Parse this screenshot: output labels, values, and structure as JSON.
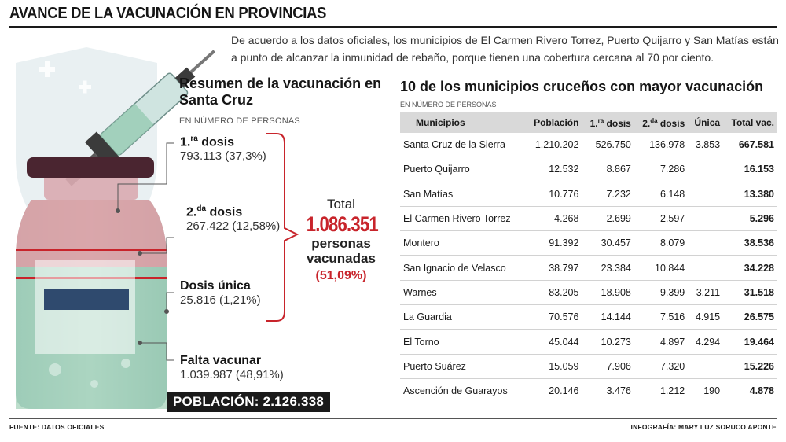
{
  "header": {
    "title": "AVANCE DE LA VACUNACIÓN EN PROVINCIAS",
    "intro": "De acuerdo a los datos oficiales, los municipios de El Carmen Rivero Torrez, Puerto Quijarro y San Matías están a punto de alcanzar la inmunidad de rebaño, porque tienen una cobertura cercana al 70 por ciento."
  },
  "summary": {
    "title": "Resumen de la vacunación en Santa Cruz",
    "subtitle": "EN NÚMERO DE PERSONAS",
    "doses": [
      {
        "label_num": "1.",
        "label_sup": "ra",
        "label_rest": " dosis",
        "value": "793.113 (37,3%)"
      },
      {
        "label_num": "2.",
        "label_sup": "da",
        "label_rest": " dosis",
        "value": "267.422 (12,58%)"
      },
      {
        "label_num": "Dosis única",
        "label_sup": "",
        "label_rest": "",
        "value": "25.816 (1,21%)"
      },
      {
        "label_num": "Falta vacunar",
        "label_sup": "",
        "label_rest": "",
        "value": "1.039.987 (48,91%)"
      }
    ],
    "total": {
      "label": "Total",
      "value": "1.086.351",
      "text1": "personas",
      "text2": "vacunadas",
      "percent": "(51,09%)"
    },
    "population": "POBLACIÓN: 2.126.338"
  },
  "table": {
    "title": "10 de los municipios cruceños con mayor vacunación",
    "subtitle": "EN NÚMERO DE PERSONAS",
    "headers": {
      "municipio": "Municipios",
      "poblacion": "Población",
      "d1_num": "1.",
      "d1_sup": "ra",
      "d1_rest": " dosis",
      "d2_num": "2.",
      "d2_sup": "da",
      "d2_rest": " dosis",
      "unica": "Única",
      "total": "Total vac."
    },
    "rows": [
      {
        "municipio": "Santa Cruz de la Sierra",
        "poblacion": "1.210.202",
        "d1": "526.750",
        "d2": "136.978",
        "unica": "3.853",
        "total": "667.581"
      },
      {
        "municipio": "Puerto Quijarro",
        "poblacion": "12.532",
        "d1": "8.867",
        "d2": "7.286",
        "unica": "",
        "total": "16.153"
      },
      {
        "municipio": "San Matías",
        "poblacion": "10.776",
        "d1": "7.232",
        "d2": "6.148",
        "unica": "",
        "total": "13.380"
      },
      {
        "municipio": "El Carmen Rivero Torrez",
        "poblacion": "4.268",
        "d1": "2.699",
        "d2": "2.597",
        "unica": "",
        "total": "5.296"
      },
      {
        "municipio": "Montero",
        "poblacion": "91.392",
        "d1": "30.457",
        "d2": "8.079",
        "unica": "",
        "total": "38.536"
      },
      {
        "municipio": "San Ignacio de Velasco",
        "poblacion": "38.797",
        "d1": "23.384",
        "d2": "10.844",
        "unica": "",
        "total": "34.228"
      },
      {
        "municipio": "Warnes",
        "poblacion": "83.205",
        "d1": "18.908",
        "d2": "9.399",
        "unica": "3.211",
        "total": "31.518"
      },
      {
        "municipio": "La Guardia",
        "poblacion": "70.576",
        "d1": "14.144",
        "d2": "7.516",
        "unica": "4.915",
        "total": "26.575"
      },
      {
        "municipio": "El Torno",
        "poblacion": "45.044",
        "d1": "10.273",
        "d2": "4.897",
        "unica": "4.294",
        "total": "19.464"
      },
      {
        "municipio": "Puerto Suárez",
        "poblacion": "15.059",
        "d1": "7.906",
        "d2": "7.320",
        "unica": "",
        "total": "15.226"
      },
      {
        "municipio": "Ascención de Guarayos",
        "poblacion": "20.146",
        "d1": "3.476",
        "d2": "1.212",
        "unica": "190",
        "total": "4.878"
      }
    ]
  },
  "footer": {
    "source": "FUENTE: DATOS OFICIALES",
    "credit": "INFOGRAFÍA: MARY LUZ SORUCO APONTE"
  },
  "colors": {
    "accent_red": "#c8242b",
    "vial_pink": "#d99aa0",
    "vial_green": "#86c3a3",
    "cap": "#4a2530"
  }
}
